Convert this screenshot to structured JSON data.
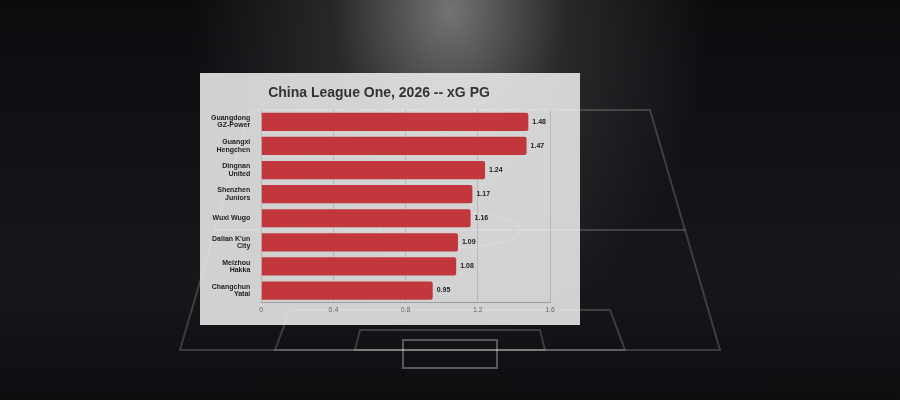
{
  "chart_data": {
    "type": "bar",
    "title": "China League One, 2026 -- xG PG",
    "orientation": "horizontal",
    "categories": [
      "Guangdong GZ-Power",
      "Guangxi Hengchen",
      "Dingnan United",
      "Shenzhen Juniors",
      "Wuxi Wugo",
      "Dalian K'un City",
      "Meizhou Hakka",
      "Changchun Yatai"
    ],
    "values": [
      1.48,
      1.47,
      1.24,
      1.17,
      1.16,
      1.09,
      1.08,
      0.95
    ],
    "color": "#c1373c",
    "xlim": [
      0,
      1.6
    ],
    "xticks": [
      0,
      0.4,
      0.8,
      1.2,
      1.6
    ],
    "grid": true,
    "data_labels": true
  }
}
